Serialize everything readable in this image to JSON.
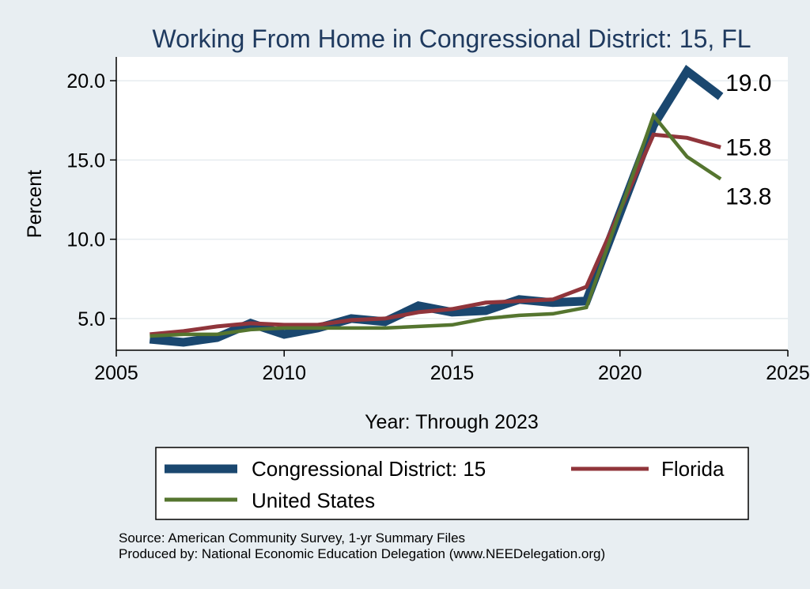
{
  "chart_data": {
    "type": "line",
    "title": "Working From Home in Congressional District: 15, FL",
    "xlabel": "Year: Through 2023",
    "ylabel": "Percent",
    "xlim": [
      2005,
      2025
    ],
    "ylim": [
      3.0,
      21.5
    ],
    "xticks": [
      2005,
      2010,
      2015,
      2020,
      2025
    ],
    "xtick_labels": [
      "2005",
      "2010",
      "2015",
      "2020",
      "2025"
    ],
    "yticks": [
      5,
      10,
      15,
      20
    ],
    "ytick_labels": [
      "5.0",
      "10.0",
      "15.0",
      "20.0"
    ],
    "grid": true,
    "x": [
      2006,
      2007,
      2008,
      2009,
      2010,
      2011,
      2012,
      2013,
      2014,
      2015,
      2016,
      2017,
      2018,
      2019,
      2021,
      2022,
      2023
    ],
    "series": [
      {
        "name": "Congressional District: 15",
        "color": "#1a476f",
        "values": [
          3.7,
          3.5,
          3.8,
          4.7,
          4.0,
          4.4,
          5.0,
          4.8,
          5.8,
          5.4,
          5.5,
          6.2,
          6.0,
          6.1,
          17.2,
          20.6,
          19.0
        ],
        "end_label": "19.0"
      },
      {
        "name": "Florida",
        "color": "#90353b",
        "values": [
          4.0,
          4.2,
          4.5,
          4.7,
          4.6,
          4.6,
          4.9,
          5.0,
          5.4,
          5.6,
          6.0,
          6.1,
          6.2,
          7.0,
          16.6,
          16.4,
          15.8
        ],
        "end_label": "15.8"
      },
      {
        "name": "United States",
        "color": "#55752f",
        "values": [
          3.9,
          4.0,
          4.0,
          4.3,
          4.4,
          4.4,
          4.4,
          4.4,
          4.5,
          4.6,
          5.0,
          5.2,
          5.3,
          5.7,
          17.8,
          15.2,
          13.8
        ],
        "end_label": "13.8"
      }
    ],
    "legend_position": "bottom"
  },
  "notes": {
    "source": "Source: American Community Survey, 1-yr Summary Files",
    "producer": "Produced by: National Economic Education Delegation (www.NEEDelegation.org)"
  }
}
